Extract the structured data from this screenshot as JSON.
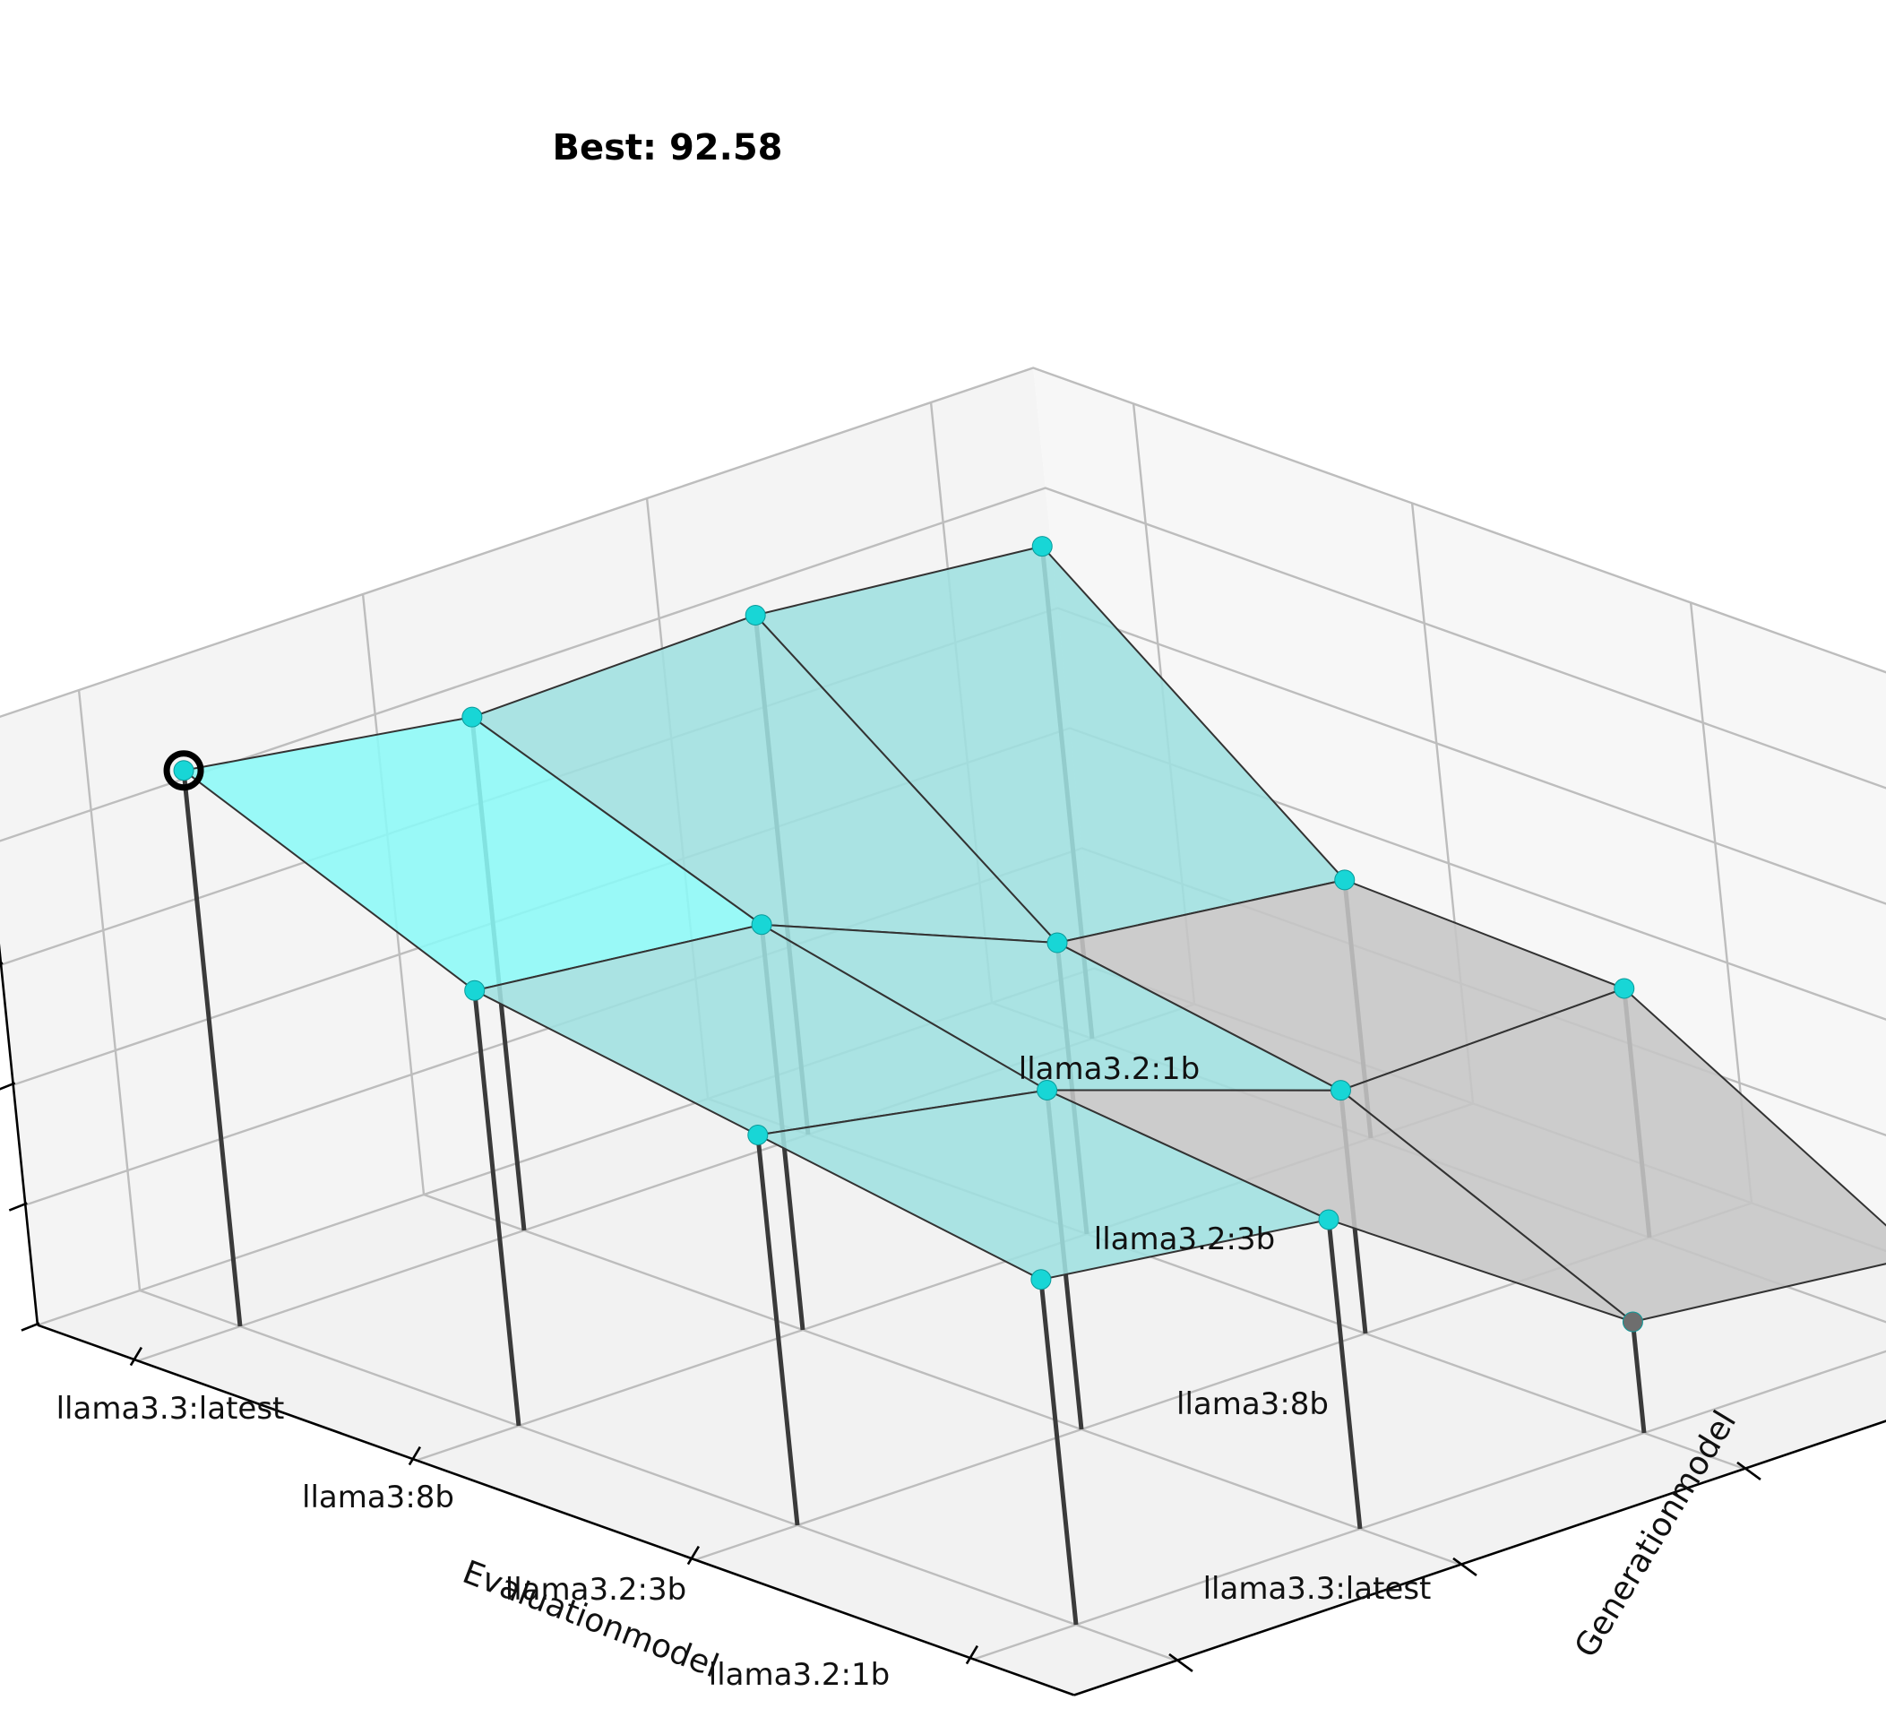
{
  "chart_data": {
    "type": "surface3d",
    "x_axis": {
      "label": "Evaluationmodel",
      "categories": [
        "llama3.3:latest",
        "llama3:8b",
        "llama3.2:3b",
        "llama3.2:1b"
      ]
    },
    "y_axis": {
      "label": "Generationmodel",
      "categories": [
        "llama3.3:latest",
        "llama3:8b",
        "llama3.2:3b",
        "llama3.2:1b"
      ]
    },
    "z_axis": {
      "label": "",
      "ticks": [
        "0",
        "20",
        "40",
        "60",
        "80",
        "100"
      ],
      "zlim": [
        0,
        100
      ]
    },
    "grid": true,
    "values": [
      [
        92.58,
        72.5,
        65.0,
        57.5
      ],
      [
        85.5,
        67.5,
        56.5,
        51.5
      ],
      [
        86.5,
        48.5,
        40.5,
        18.5
      ],
      [
        82.0,
        43.0,
        41.5,
        13.5
      ]
    ],
    "annotation": {
      "text": "Best: 92.58",
      "eval_index": 0,
      "gen_index": 0
    },
    "colors": {
      "high_face": "#8cf9f7",
      "mid_face": "#9fe0e0",
      "low_face": "#c6c6c6",
      "marker_high": "#18d6d6",
      "marker_low": "#6e6e6e",
      "stem": "#3a3a3a",
      "pane": "#f2f2f2",
      "gridline": "#bdbdbd"
    }
  }
}
